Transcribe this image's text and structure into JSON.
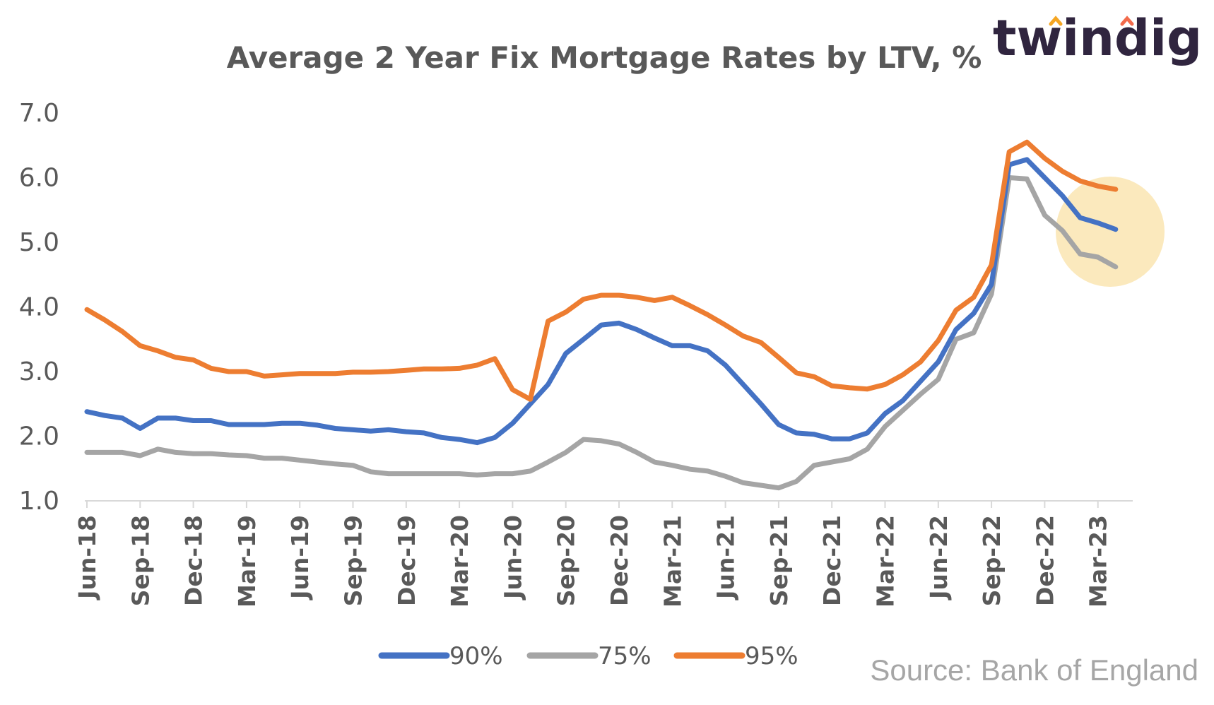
{
  "logo": {
    "text": "twindig",
    "colors": {
      "text": "#30253f",
      "accent1": "#f5a623",
      "accent2": "#f26b4c"
    }
  },
  "source": "Source: Bank of England",
  "highlight_color": "#fbe9bd",
  "chart_data": {
    "type": "line",
    "title": "Average 2 Year Fix Mortgage Rates by LTV, %",
    "xlabel": "",
    "ylabel": "",
    "ylim": [
      1.0,
      7.0
    ],
    "yticks": [
      "7.0",
      "6.0",
      "5.0",
      "4.0",
      "3.0",
      "2.0",
      "1.0"
    ],
    "grid": false,
    "legend_position": "bottom",
    "x": [
      "Jun-18",
      "Jul-18",
      "Aug-18",
      "Sep-18",
      "Oct-18",
      "Nov-18",
      "Dec-18",
      "Jan-19",
      "Feb-19",
      "Mar-19",
      "Apr-19",
      "May-19",
      "Jun-19",
      "Jul-19",
      "Aug-19",
      "Sep-19",
      "Oct-19",
      "Nov-19",
      "Dec-19",
      "Jan-20",
      "Feb-20",
      "Mar-20",
      "Apr-20",
      "May-20",
      "Jun-20",
      "Jul-20",
      "Aug-20",
      "Sep-20",
      "Oct-20",
      "Nov-20",
      "Dec-20",
      "Jan-21",
      "Feb-21",
      "Mar-21",
      "Apr-21",
      "May-21",
      "Jun-21",
      "Jul-21",
      "Aug-21",
      "Sep-21",
      "Oct-21",
      "Nov-21",
      "Dec-21",
      "Jan-22",
      "Feb-22",
      "Mar-22",
      "Apr-22",
      "May-22",
      "Jun-22",
      "Jul-22",
      "Aug-22",
      "Sep-22",
      "Oct-22",
      "Nov-22",
      "Dec-22",
      "Jan-23",
      "Feb-23",
      "Mar-23",
      "Apr-23"
    ],
    "xtick_labels": [
      "Jun-18",
      "Sep-18",
      "Dec-18",
      "Mar-19",
      "Jun-19",
      "Sep-19",
      "Dec-19",
      "Mar-20",
      "Jun-20",
      "Sep-20",
      "Dec-20",
      "Mar-21",
      "Jun-21",
      "Sep-21",
      "Dec-21",
      "Mar-22",
      "Jun-22",
      "Sep-22",
      "Dec-22",
      "Mar-23"
    ],
    "series": [
      {
        "name": "90%",
        "color": "#4472c4",
        "values": [
          2.38,
          2.32,
          2.28,
          2.12,
          2.28,
          2.28,
          2.24,
          2.24,
          2.18,
          2.18,
          2.18,
          2.2,
          2.2,
          2.17,
          2.12,
          2.1,
          2.08,
          2.1,
          2.07,
          2.05,
          1.98,
          1.95,
          1.9,
          1.98,
          2.2,
          2.5,
          2.8,
          3.28,
          3.5,
          3.72,
          3.75,
          3.65,
          3.52,
          3.4,
          3.4,
          3.32,
          3.1,
          2.8,
          2.5,
          2.18,
          2.05,
          2.03,
          1.96,
          1.96,
          2.05,
          2.35,
          2.55,
          2.85,
          3.15,
          3.65,
          3.9,
          4.35,
          6.2,
          6.28,
          6.0,
          5.72,
          5.38,
          5.3,
          5.2
        ]
      },
      {
        "name": "75%",
        "color": "#a5a5a5",
        "values": [
          1.75,
          1.75,
          1.75,
          1.7,
          1.8,
          1.75,
          1.73,
          1.73,
          1.71,
          1.7,
          1.66,
          1.66,
          1.63,
          1.6,
          1.57,
          1.55,
          1.45,
          1.42,
          1.42,
          1.42,
          1.42,
          1.42,
          1.4,
          1.42,
          1.42,
          1.46,
          1.6,
          1.75,
          1.95,
          1.93,
          1.88,
          1.75,
          1.6,
          1.55,
          1.49,
          1.46,
          1.38,
          1.28,
          1.24,
          1.2,
          1.3,
          1.55,
          1.6,
          1.65,
          1.8,
          2.15,
          2.4,
          2.65,
          2.88,
          3.5,
          3.6,
          4.2,
          6.0,
          5.98,
          5.42,
          5.18,
          4.82,
          4.77,
          4.62
        ]
      },
      {
        "name": "95%",
        "color": "#ed7d31",
        "values": [
          3.96,
          3.8,
          3.62,
          3.4,
          3.32,
          3.22,
          3.18,
          3.05,
          3.0,
          3.0,
          2.93,
          2.95,
          2.97,
          2.97,
          2.97,
          2.99,
          2.99,
          3.0,
          3.02,
          3.04,
          3.04,
          3.05,
          3.1,
          3.2,
          2.72,
          2.57,
          3.78,
          3.92,
          4.12,
          4.18,
          4.18,
          4.15,
          4.1,
          4.15,
          4.02,
          3.88,
          3.72,
          3.55,
          3.45,
          3.22,
          2.98,
          2.92,
          2.78,
          2.75,
          2.73,
          2.8,
          2.95,
          3.15,
          3.48,
          3.95,
          4.15,
          4.65,
          6.4,
          6.55,
          6.3,
          6.1,
          5.95,
          5.87,
          5.82
        ]
      }
    ]
  }
}
